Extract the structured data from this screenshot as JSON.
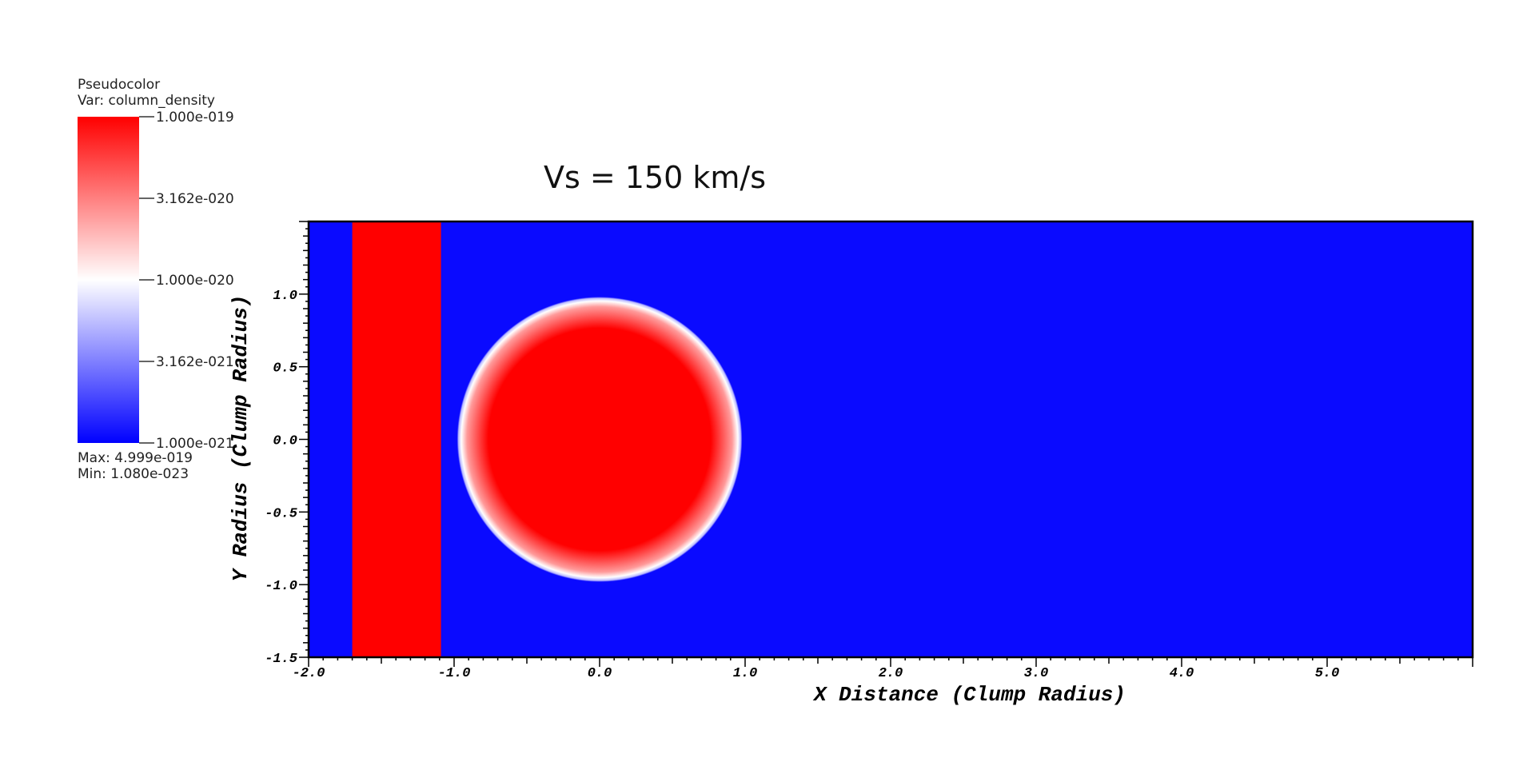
{
  "title": "Vs = 150 km/s",
  "legend": {
    "plot_type": "Pseudocolor",
    "var_label": "Var: column_density",
    "ticks": [
      "1.000e-019",
      "3.162e-020",
      "1.000e-020",
      "3.162e-021",
      "1.000e-021"
    ],
    "max_label": "Max:  4.999e-019",
    "min_label": "Min:  1.080e-023",
    "colors": {
      "high": "#ff0000",
      "mid": "#ffffff",
      "low": "#0000ff"
    }
  },
  "chart_data": {
    "type": "heatmap",
    "variable": "column_density",
    "scale": "log",
    "color_range": [
      1e-21,
      1e-19
    ],
    "data_range": {
      "max": 4.999e-19,
      "min": 1.08e-23
    },
    "xlabel": "X Distance (Clump Radius)",
    "ylabel": "Y Radius (Clump Radius)",
    "xlim": [
      -2.0,
      6.0
    ],
    "ylim": [
      -1.5,
      1.5
    ],
    "x_ticks": [
      "-2.0",
      "-1.0",
      "0.0",
      "1.0",
      "2.0",
      "3.0",
      "4.0",
      "5.0"
    ],
    "y_ticks": [
      "-1.5",
      "-1.0",
      "-0.5",
      "0.0",
      "0.5",
      "1.0"
    ],
    "background_color": "#0a0aff",
    "features": {
      "slab": {
        "x_min": -1.7,
        "x_max": -1.09,
        "color": "#ff0000"
      },
      "clump": {
        "center_x": 0.0,
        "center_y": 0.0,
        "radius": 0.98,
        "color": "#ff0000"
      }
    }
  }
}
